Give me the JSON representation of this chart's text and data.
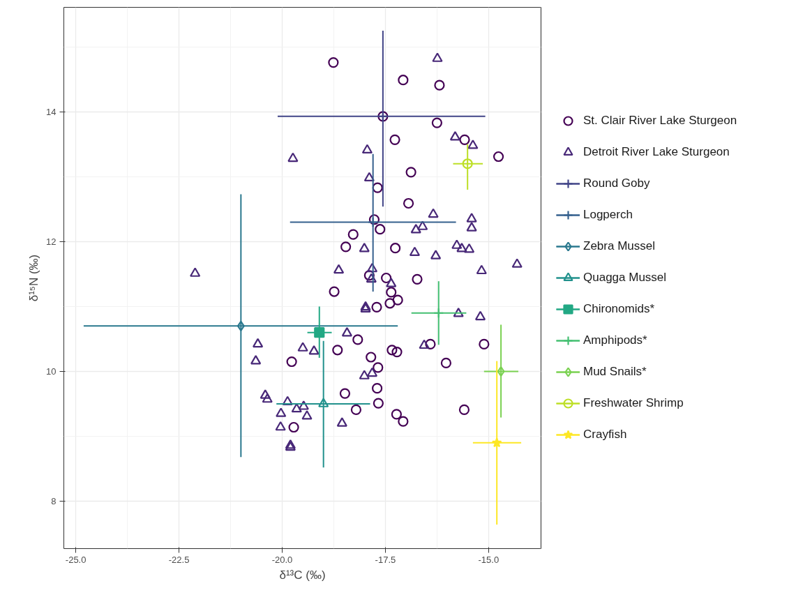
{
  "chart_data": {
    "type": "scatter",
    "xlabel": "δ¹³C (‰)",
    "ylabel": "δ¹⁵N (‰)",
    "xlim": [
      -25.29,
      -13.73
    ],
    "ylim": [
      7.27,
      15.61
    ],
    "xticks": [
      {
        "value": -25,
        "label": "-25.0"
      },
      {
        "value": -22.5,
        "label": "-22.5"
      },
      {
        "value": -20,
        "label": "-20.0"
      },
      {
        "value": -17.5,
        "label": "-17.5"
      },
      {
        "value": -15,
        "label": "-15.0"
      }
    ],
    "yticks": [
      8,
      10,
      12,
      14
    ],
    "grid": true,
    "legend": "right",
    "series": [
      {
        "name": "St. Clair River Lake Sturgeon",
        "color": "#440154",
        "marker": "circle",
        "x": [
          -18.76,
          -17.07,
          -16.19,
          -17.56,
          -16.25,
          -15.58,
          -17.27,
          -14.76,
          -16.88,
          -17.69,
          -16.94,
          -17.77,
          -17.63,
          -18.28,
          -18.46,
          -17.26,
          -16.73,
          -17.89,
          -17.48,
          -17.36,
          -18.74,
          -17.2,
          -17.39,
          -17.71,
          -18.17,
          -18.66,
          -17.34,
          -17.22,
          -16.41,
          -15.11,
          -19.77,
          -17.85,
          -17.68,
          -16.03,
          -17.7,
          -18.48,
          -17.67,
          -18.21,
          -17.23,
          -17.07,
          -15.59,
          -19.72
        ],
        "values": [
          14.76,
          14.49,
          14.41,
          13.93,
          13.83,
          13.57,
          13.57,
          13.31,
          13.07,
          12.83,
          12.59,
          12.34,
          12.19,
          12.11,
          11.92,
          11.9,
          11.42,
          11.48,
          11.44,
          11.22,
          11.23,
          11.1,
          11.05,
          10.99,
          10.49,
          10.33,
          10.33,
          10.3,
          10.42,
          10.42,
          10.15,
          10.22,
          10.06,
          10.13,
          9.74,
          9.66,
          9.51,
          9.41,
          9.34,
          9.23,
          9.41,
          9.14
        ]
      },
      {
        "name": "Detroit River Lake Sturgeon",
        "color": "#482878",
        "marker": "triangle",
        "x": [
          -16.24,
          -19.74,
          -17.94,
          -17.89,
          -15.81,
          -15.38,
          -16.34,
          -16.6,
          -16.76,
          -15.41,
          -15.41,
          -18.01,
          -16.79,
          -16.28,
          -15.77,
          -15.65,
          -15.47,
          -14.31,
          -15.17,
          -18.63,
          -17.82,
          -17.84,
          -17.36,
          -17.98,
          -17.98,
          -15.73,
          -15.2,
          -18.43,
          -16.56,
          -19.5,
          -19.23,
          -18.01,
          -17.82,
          -19.87,
          -19.65,
          -19.48,
          -19.4,
          -20.03,
          -20.04,
          -18.55,
          -22.11,
          -20.59,
          -20.64,
          -20.41,
          -20.36,
          -19.8,
          -19.8
        ],
        "values": [
          14.82,
          13.28,
          13.41,
          12.98,
          13.61,
          13.48,
          12.42,
          12.23,
          12.18,
          12.35,
          12.21,
          11.89,
          11.83,
          11.78,
          11.94,
          11.89,
          11.88,
          11.65,
          11.55,
          11.56,
          11.58,
          11.42,
          11.35,
          10.99,
          10.96,
          10.89,
          10.84,
          10.59,
          10.4,
          10.36,
          10.31,
          9.93,
          9.97,
          9.53,
          9.42,
          9.46,
          9.31,
          9.35,
          9.14,
          9.2,
          11.51,
          10.42,
          10.16,
          9.63,
          9.57,
          8.86,
          8.83
        ]
      },
      {
        "name": "Round Goby",
        "color": "#414487",
        "marker": "cross",
        "x": [
          -17.56
        ],
        "values": [
          13.93
        ],
        "errors": [
          [
            12.54,
            15.25
          ]
        ],
        "xerrors": [
          [
            -20.11,
            -15.08
          ]
        ]
      },
      {
        "name": "Logperch",
        "color": "#35608d",
        "marker": "cross",
        "x": [
          -17.8
        ],
        "values": [
          12.3
        ],
        "errors": [
          [
            11.23,
            13.35
          ]
        ],
        "xerrors": [
          [
            -19.81,
            -15.79
          ]
        ]
      },
      {
        "name": "Zebra Mussel",
        "color": "#2a788e",
        "marker": "diamond",
        "x": [
          -21.0
        ],
        "values": [
          10.7
        ],
        "errors": [
          [
            8.68,
            12.73
          ]
        ],
        "xerrors": [
          [
            -24.81,
            -17.2
          ]
        ]
      },
      {
        "name": "Quagga Mussel",
        "color": "#21918c",
        "marker": "triangle",
        "x": [
          -19.0
        ],
        "values": [
          9.5
        ],
        "errors": [
          [
            8.52,
            10.47
          ]
        ],
        "xerrors": [
          [
            -20.14,
            -17.87
          ]
        ]
      },
      {
        "name": "Chironomids*",
        "color": "#22a884",
        "marker": "square",
        "x": [
          -19.1
        ],
        "values": [
          10.6
        ],
        "errors": [
          [
            10.21,
            11.0
          ]
        ],
        "xerrors": [
          [
            -19.39,
            -18.8
          ]
        ]
      },
      {
        "name": "Amphipods*",
        "color": "#43bf71",
        "marker": "cross",
        "x": [
          -16.21
        ],
        "values": [
          10.9
        ],
        "errors": [
          [
            10.41,
            11.39
          ]
        ],
        "xerrors": [
          [
            -16.87,
            -15.54
          ]
        ]
      },
      {
        "name": "Mud Snails*",
        "color": "#7ad151",
        "marker": "diamond",
        "x": [
          -14.7
        ],
        "values": [
          10.0
        ],
        "errors": [
          [
            9.29,
            10.72
          ]
        ],
        "xerrors": [
          [
            -15.11,
            -14.28
          ]
        ]
      },
      {
        "name": "Freshwater Shrimp",
        "color": "#bddf26",
        "marker": "circle",
        "x": [
          -15.51
        ],
        "values": [
          13.2
        ],
        "errors": [
          [
            12.8,
            13.5
          ]
        ],
        "xerrors": [
          [
            -15.86,
            -15.14
          ]
        ]
      },
      {
        "name": "Crayfish",
        "color": "#fde725",
        "marker": "star",
        "x": [
          -14.8
        ],
        "values": [
          8.9
        ],
        "errors": [
          [
            7.64,
            10.16
          ]
        ],
        "xerrors": [
          [
            -15.38,
            -14.21
          ]
        ]
      }
    ]
  }
}
